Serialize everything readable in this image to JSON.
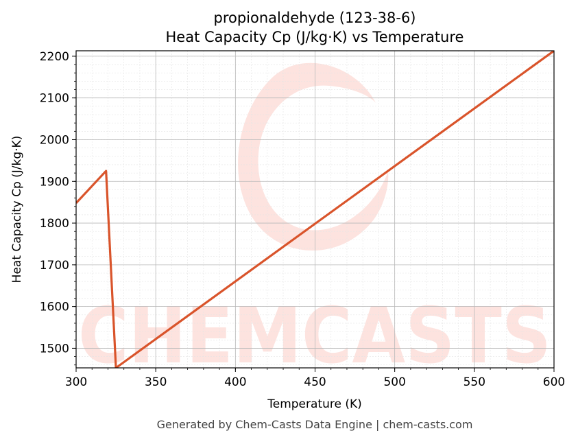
{
  "chart_data": {
    "type": "line",
    "title": "propionaldehyde (123-38-6)",
    "subtitle": "Heat Capacity Cp (J/kg·K) vs Temperature",
    "xlabel": "Temperature (K)",
    "ylabel": "Heat Capacity Cp (J/kg·K)",
    "xlim": [
      300,
      600
    ],
    "ylim": [
      1453,
      2213
    ],
    "x_ticks": [
      300,
      350,
      400,
      450,
      500,
      550,
      600
    ],
    "y_ticks": [
      1500,
      1600,
      1700,
      1800,
      1900,
      2000,
      2100,
      2200
    ],
    "grid": true,
    "series": [
      {
        "x": [
          300,
          318.8,
          325,
          600
        ],
        "y": [
          1848,
          1925,
          1453,
          2213
        ]
      }
    ]
  },
  "colors": {
    "line": "#d9542b",
    "watermark": "#fde3df"
  },
  "watermark": {
    "text": "CHEMCASTS"
  },
  "footer": {
    "text": "Generated by Chem-Casts Data Engine | chem-casts.com"
  }
}
